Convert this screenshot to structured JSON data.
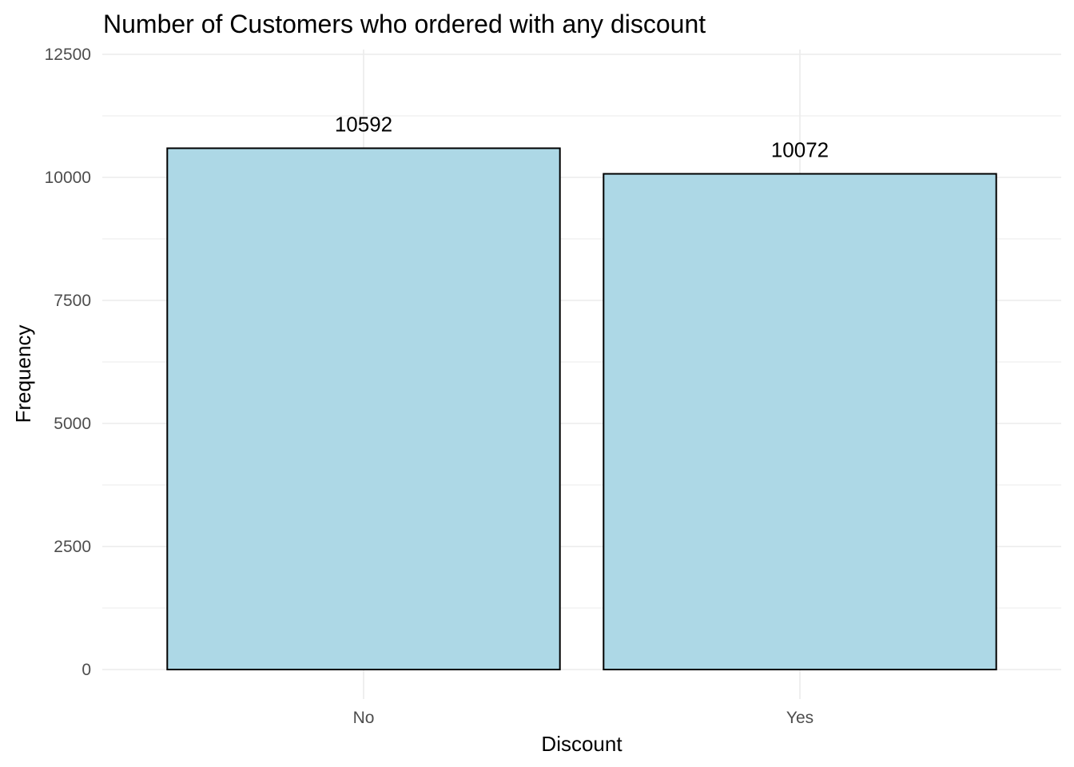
{
  "chart_data": {
    "type": "bar",
    "title": "Number of Customers who ordered with any discount",
    "xlabel": "Discount",
    "ylabel": "Frequency",
    "categories": [
      "No",
      "Yes"
    ],
    "values": [
      10592,
      10072
    ],
    "data_labels": [
      "10592",
      "10072"
    ],
    "ylim": [
      0,
      12500
    ],
    "y_ticks": [
      0,
      2500,
      5000,
      7500,
      10000,
      12500
    ],
    "y_tick_labels": [
      "0",
      "2500",
      "5000",
      "7500",
      "10000",
      "12500"
    ],
    "grid": true,
    "bar_fill": "#add8e6",
    "bar_outline": "#000000"
  }
}
